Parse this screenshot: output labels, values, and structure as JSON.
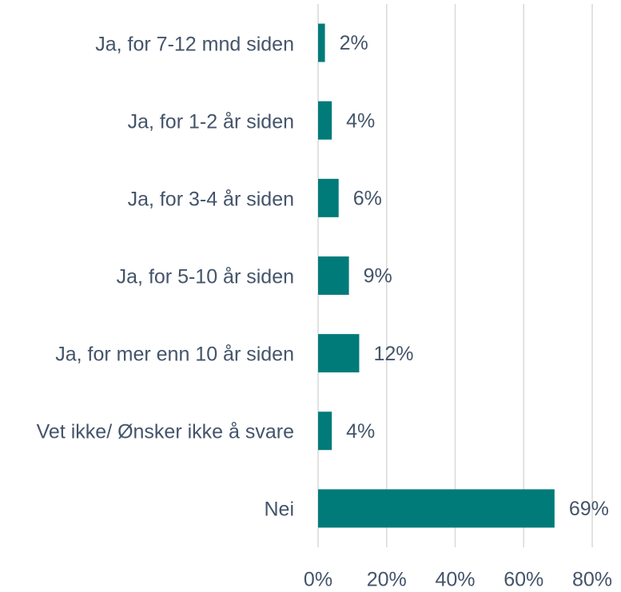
{
  "chart_data": {
    "type": "bar",
    "orientation": "horizontal",
    "categories": [
      "Ja, for 7-12 mnd siden",
      "Ja, for 1-2 år siden",
      "Ja, for 3-4 år siden",
      "Ja, for 5-10 år siden",
      "Ja, for mer enn 10 år siden",
      "Vet ikke/ Ønsker ikke å svare",
      "Nei"
    ],
    "values": [
      2,
      4,
      6,
      9,
      12,
      4,
      69
    ],
    "value_labels": [
      "2%",
      "4%",
      "6%",
      "9%",
      "12%",
      "4%",
      "69%"
    ],
    "color": "#007b7a",
    "xlim": [
      0,
      80
    ],
    "xticks": [
      {
        "value": 0,
        "label": "0%"
      },
      {
        "value": 20,
        "label": "20%"
      },
      {
        "value": 40,
        "label": "40%"
      },
      {
        "value": 60,
        "label": "60%"
      },
      {
        "value": 80,
        "label": "80%"
      }
    ],
    "grid": true
  }
}
